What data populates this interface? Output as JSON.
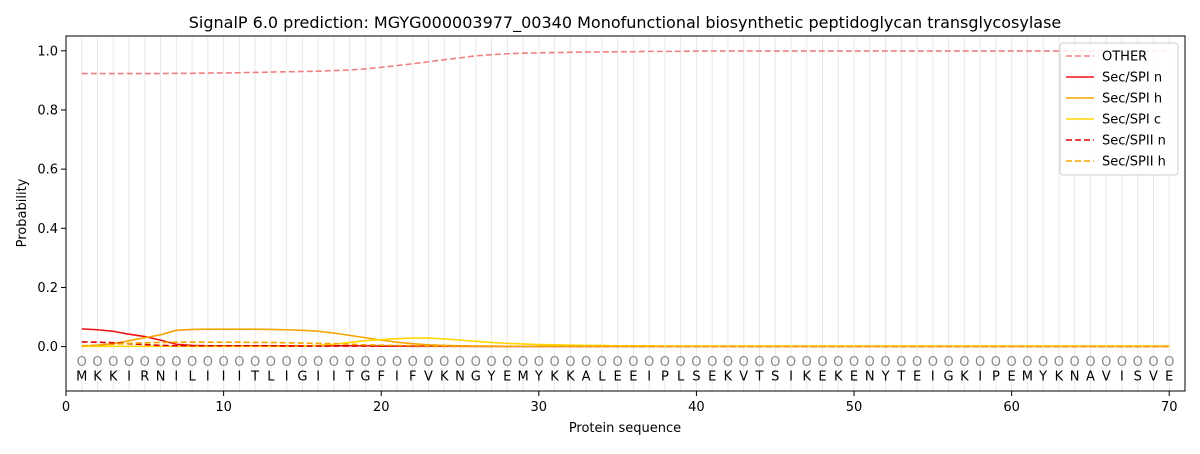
{
  "chart_data": {
    "type": "line",
    "title": "SignalP 6.0 prediction: MGYG000003977_00340 Monofunctional biosynthetic peptidoglycan transglycosylase",
    "xlabel": "Protein sequence",
    "ylabel": "Probability",
    "xlim": [
      0,
      71
    ],
    "ylim": [
      -0.15,
      1.05
    ],
    "x_ticks": [
      0,
      10,
      20,
      30,
      40,
      50,
      60,
      70
    ],
    "y_ticks": [
      0.0,
      0.2,
      0.4,
      0.6,
      0.8,
      1.0
    ],
    "y_tick_labels": [
      "0.0",
      "0.2",
      "0.4",
      "0.6",
      "0.8",
      "1.0"
    ],
    "grid": "vertical lines at each residue",
    "legend_position": "top-right",
    "sequence": [
      "M",
      "K",
      "K",
      "I",
      "R",
      "N",
      "I",
      "L",
      "I",
      "I",
      "I",
      "T",
      "L",
      "I",
      "G",
      "I",
      "I",
      "T",
      "G",
      "F",
      "I",
      "F",
      "V",
      "K",
      "N",
      "G",
      "Y",
      "E",
      "M",
      "Y",
      "K",
      "K",
      "A",
      "L",
      "E",
      "E",
      "I",
      "P",
      "L",
      "S",
      "E",
      "K",
      "V",
      "T",
      "S",
      "I",
      "K",
      "E",
      "K",
      "E",
      "N",
      "Y",
      "T",
      "E",
      "I",
      "G",
      "K",
      "I",
      "P",
      "E",
      "M",
      "Y",
      "K",
      "N",
      "A",
      "V",
      "I",
      "S",
      "V",
      "E"
    ],
    "region_marker": "O",
    "series": [
      {
        "name": "OTHER",
        "color": "#f08080",
        "dash": "dashed",
        "values": [
          0.923,
          0.923,
          0.923,
          0.923,
          0.923,
          0.923,
          0.924,
          0.924,
          0.925,
          0.925,
          0.926,
          0.927,
          0.928,
          0.929,
          0.93,
          0.931,
          0.933,
          0.935,
          0.939,
          0.944,
          0.95,
          0.956,
          0.963,
          0.97,
          0.976,
          0.983,
          0.987,
          0.99,
          0.992,
          0.993,
          0.994,
          0.995,
          0.996,
          0.996,
          0.997,
          0.997,
          0.998,
          0.998,
          0.998,
          0.999,
          0.999,
          0.999,
          0.999,
          0.999,
          0.999,
          0.999,
          0.999,
          0.999,
          0.999,
          0.999,
          0.999,
          0.999,
          0.999,
          0.999,
          0.999,
          0.999,
          0.999,
          0.999,
          0.999,
          0.999,
          0.999,
          0.999,
          0.999,
          0.999,
          0.999,
          0.999,
          0.999,
          0.999,
          0.999,
          0.999
        ]
      },
      {
        "name": "Sec/SPI n",
        "color": "#ee1111",
        "dash": "solid",
        "values": [
          0.06,
          0.057,
          0.052,
          0.042,
          0.034,
          0.022,
          0.008,
          0.004,
          0.003,
          0.003,
          0.003,
          0.003,
          0.003,
          0.003,
          0.003,
          0.003,
          0.003,
          0.003,
          0.003,
          0.002,
          0.002,
          0.002,
          0.002,
          0.002,
          0.002,
          0.001,
          0.001,
          0.001,
          0.001,
          0.001,
          0.001,
          0.001,
          0.001,
          0.001,
          0.001,
          0.001,
          0.001,
          0.001,
          0.001,
          0.001,
          0.001,
          0.001,
          0.001,
          0.001,
          0.001,
          0.001,
          0.001,
          0.001,
          0.001,
          0.001,
          0.001,
          0.001,
          0.001,
          0.001,
          0.001,
          0.001,
          0.001,
          0.001,
          0.001,
          0.001,
          0.001,
          0.001,
          0.001,
          0.001,
          0.001,
          0.001,
          0.001,
          0.001,
          0.001,
          0.001
        ]
      },
      {
        "name": "Sec/SPI h",
        "color": "#f5a500",
        "dash": "solid",
        "values": [
          0.002,
          0.005,
          0.01,
          0.02,
          0.03,
          0.04,
          0.055,
          0.058,
          0.059,
          0.059,
          0.059,
          0.059,
          0.058,
          0.057,
          0.055,
          0.052,
          0.046,
          0.038,
          0.03,
          0.022,
          0.015,
          0.01,
          0.006,
          0.004,
          0.003,
          0.002,
          0.002,
          0.001,
          0.001,
          0.001,
          0.001,
          0.001,
          0.001,
          0.001,
          0.001,
          0.001,
          0.001,
          0.001,
          0.001,
          0.001,
          0.001,
          0.001,
          0.001,
          0.001,
          0.001,
          0.001,
          0.001,
          0.001,
          0.001,
          0.001,
          0.001,
          0.001,
          0.001,
          0.001,
          0.001,
          0.001,
          0.001,
          0.001,
          0.001,
          0.001,
          0.001,
          0.001,
          0.001,
          0.001,
          0.001,
          0.001,
          0.001,
          0.001,
          0.001,
          0.001
        ]
      },
      {
        "name": "Sec/SPI c",
        "color": "#ffd700",
        "dash": "solid",
        "values": [
          0.001,
          0.001,
          0.001,
          0.001,
          0.001,
          0.001,
          0.001,
          0.001,
          0.001,
          0.001,
          0.001,
          0.001,
          0.001,
          0.001,
          0.002,
          0.004,
          0.008,
          0.014,
          0.02,
          0.024,
          0.027,
          0.029,
          0.029,
          0.026,
          0.022,
          0.018,
          0.014,
          0.011,
          0.009,
          0.007,
          0.006,
          0.005,
          0.004,
          0.004,
          0.003,
          0.003,
          0.003,
          0.002,
          0.002,
          0.002,
          0.002,
          0.002,
          0.002,
          0.002,
          0.002,
          0.002,
          0.002,
          0.002,
          0.002,
          0.002,
          0.002,
          0.002,
          0.002,
          0.002,
          0.002,
          0.002,
          0.002,
          0.002,
          0.002,
          0.002,
          0.002,
          0.002,
          0.002,
          0.002,
          0.002,
          0.002,
          0.002,
          0.002,
          0.002,
          0.002
        ]
      },
      {
        "name": "Sec/SPII n",
        "color": "#dd0000",
        "dash": "dashed",
        "values": [
          0.016,
          0.015,
          0.013,
          0.01,
          0.007,
          0.004,
          0.003,
          0.003,
          0.003,
          0.003,
          0.003,
          0.003,
          0.003,
          0.002,
          0.002,
          0.002,
          0.002,
          0.002,
          0.002,
          0.002,
          0.002,
          0.001,
          0.001,
          0.001,
          0.001,
          0.001,
          0.001,
          0.001,
          0.001,
          0.001,
          0.001,
          0.001,
          0.001,
          0.001,
          0.001,
          0.001,
          0.001,
          0.001,
          0.001,
          0.001,
          0.001,
          0.001,
          0.001,
          0.001,
          0.001,
          0.001,
          0.001,
          0.001,
          0.001,
          0.001,
          0.001,
          0.001,
          0.001,
          0.001,
          0.001,
          0.001,
          0.001,
          0.001,
          0.001,
          0.001,
          0.001,
          0.001,
          0.001,
          0.001,
          0.001,
          0.001,
          0.001,
          0.001,
          0.001,
          0.001
        ]
      },
      {
        "name": "Sec/SPII h",
        "color": "#f5a500",
        "dash": "dashed",
        "values": [
          0.003,
          0.005,
          0.008,
          0.011,
          0.013,
          0.014,
          0.015,
          0.015,
          0.015,
          0.015,
          0.015,
          0.014,
          0.014,
          0.013,
          0.012,
          0.011,
          0.01,
          0.008,
          0.006,
          0.005,
          0.004,
          0.003,
          0.002,
          0.002,
          0.001,
          0.001,
          0.001,
          0.001,
          0.001,
          0.001,
          0.001,
          0.001,
          0.001,
          0.001,
          0.001,
          0.001,
          0.001,
          0.001,
          0.001,
          0.001,
          0.001,
          0.001,
          0.001,
          0.001,
          0.001,
          0.001,
          0.001,
          0.001,
          0.001,
          0.001,
          0.001,
          0.001,
          0.001,
          0.001,
          0.001,
          0.001,
          0.001,
          0.001,
          0.001,
          0.001,
          0.001,
          0.001,
          0.001,
          0.001,
          0.001,
          0.001,
          0.001,
          0.001,
          0.001,
          0.001
        ]
      }
    ]
  }
}
